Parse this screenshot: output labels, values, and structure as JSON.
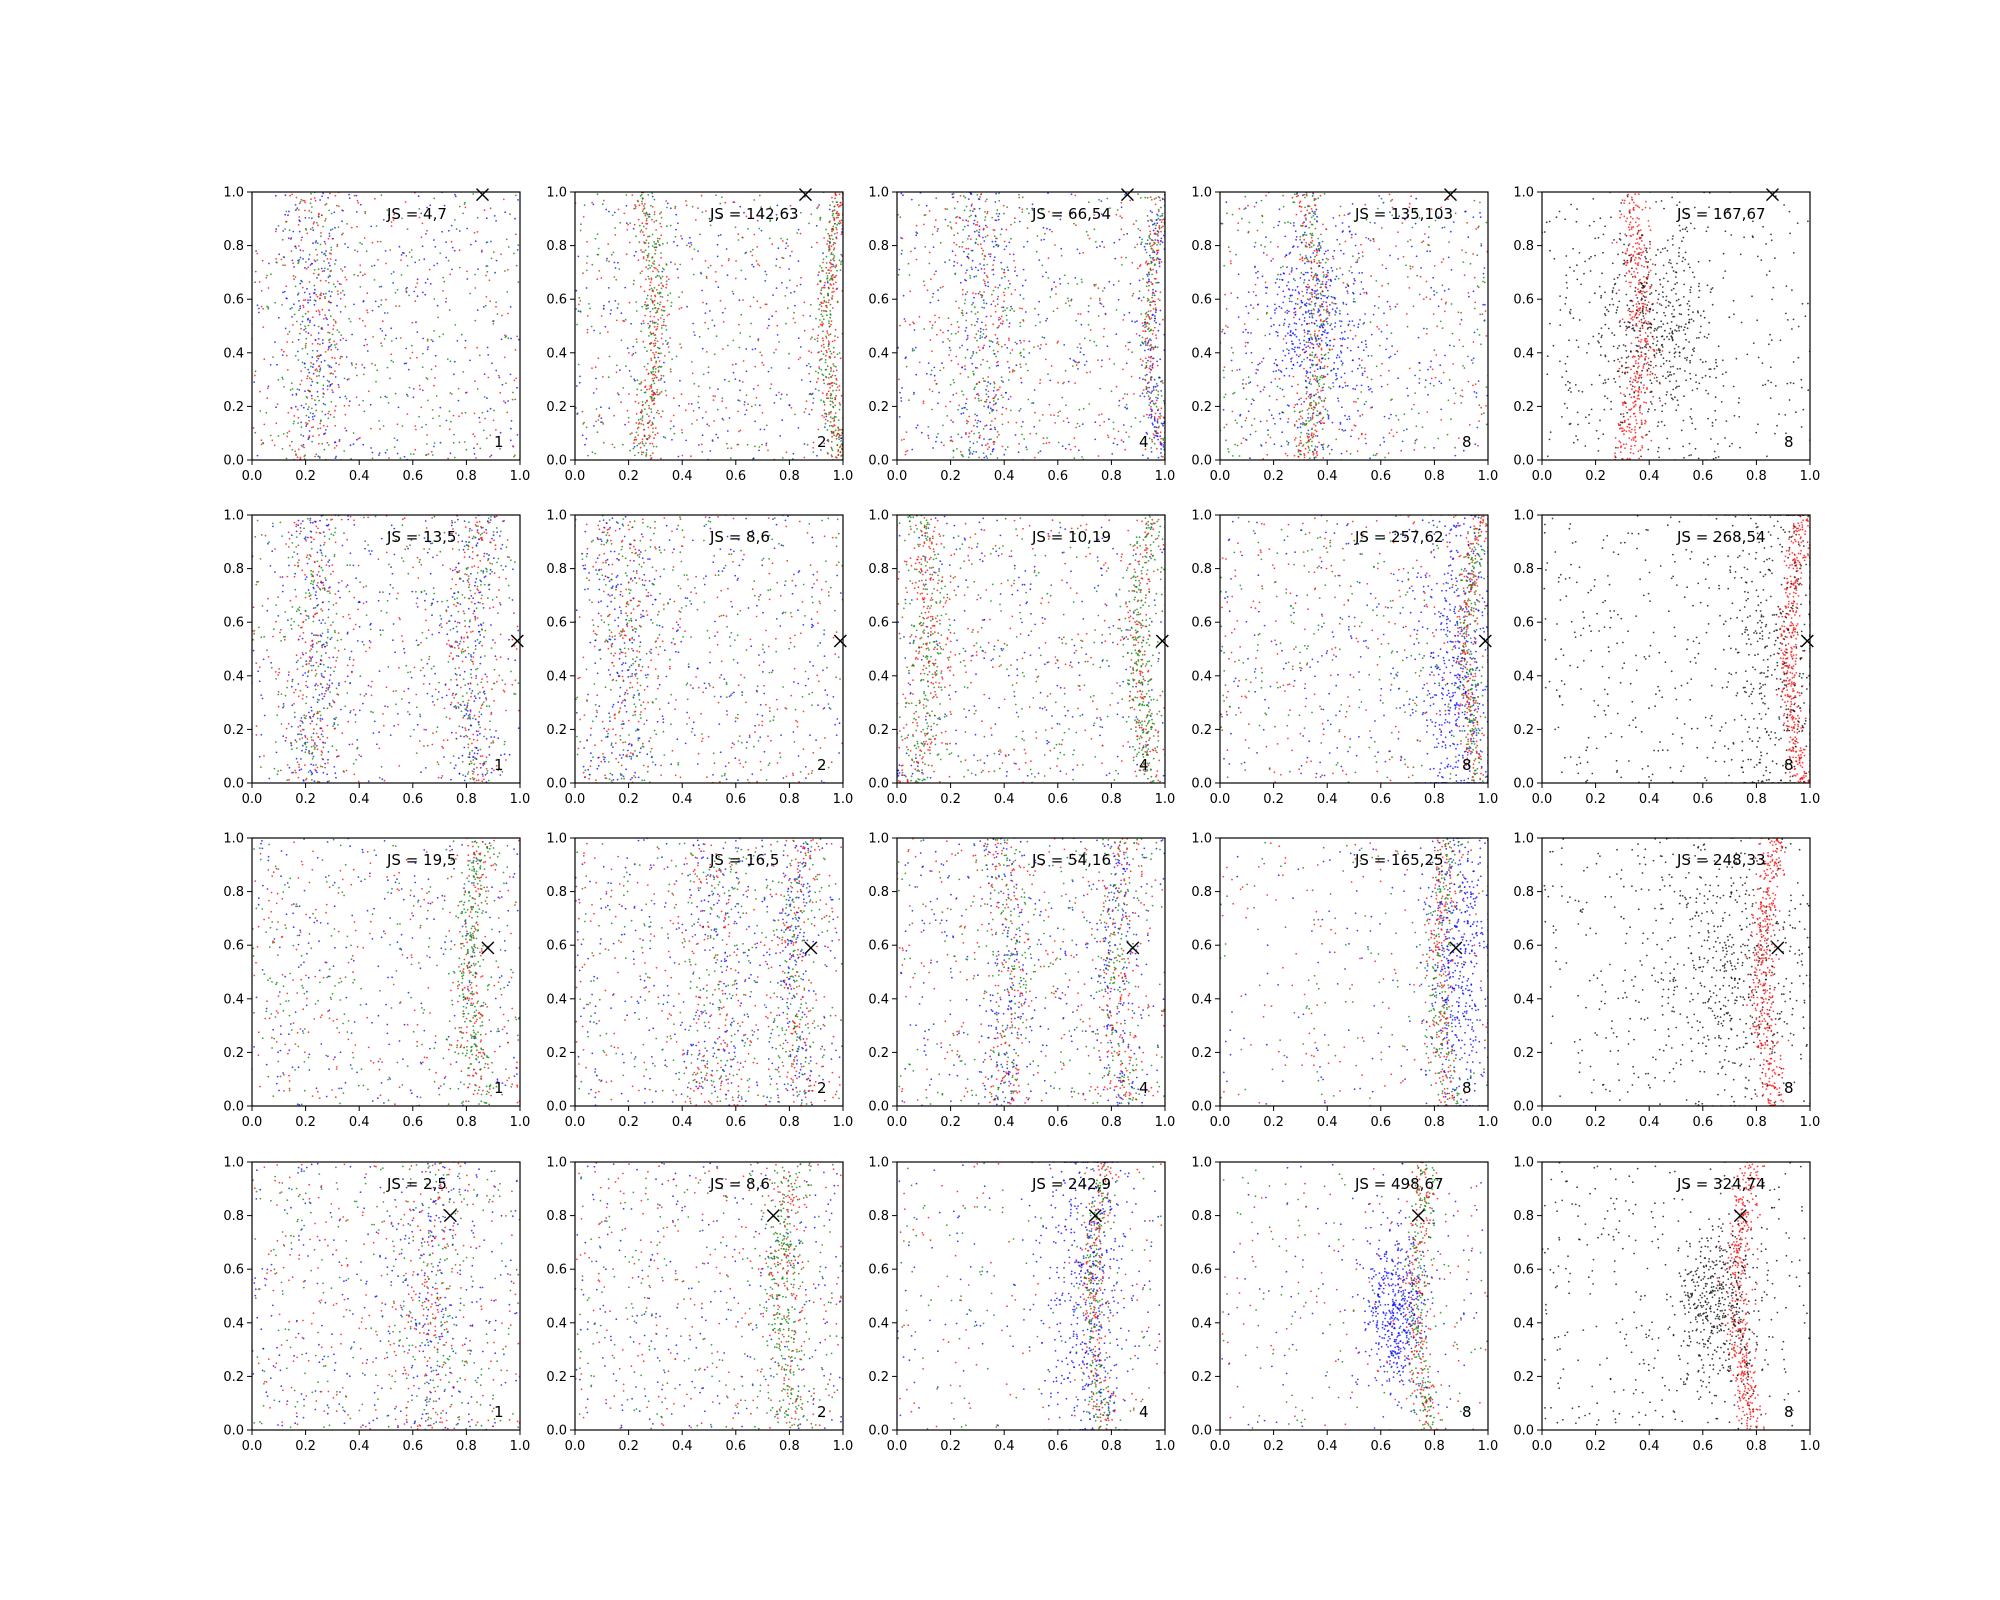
{
  "chart_data": {
    "type": "scatter",
    "layout": {
      "rows": 4,
      "cols": 5
    },
    "xlim": [
      0,
      1
    ],
    "ylim": [
      0,
      1
    ],
    "ticks": [
      "0.0",
      "0.2",
      "0.4",
      "0.6",
      "0.8",
      "1.0"
    ],
    "tick_values": [
      0,
      0.2,
      0.4,
      0.6,
      0.8,
      1.0
    ],
    "colors": {
      "blue": "#0000ff",
      "green": "#008000",
      "red": "#ff0000",
      "black": "#000000"
    },
    "panels": [
      {
        "row": 0,
        "col": 0,
        "js_label": "JS = 4,7",
        "corner_label": "1",
        "marker": [
          0.86,
          0.99
        ],
        "pattern": "mix",
        "bands": [
          [
            0.2,
            0.06
          ]
        ],
        "ring": null
      },
      {
        "row": 0,
        "col": 1,
        "js_label": "JS = 142,63",
        "corner_label": "2",
        "marker": [
          0.86,
          0.99
        ],
        "pattern": "band",
        "bands": [
          [
            0.25,
            0.03
          ],
          [
            0.99,
            0.02
          ]
        ],
        "ring": null
      },
      {
        "row": 0,
        "col": 2,
        "js_label": "JS = 66,54",
        "corner_label": "4",
        "marker": [
          0.86,
          0.99
        ],
        "pattern": "mix",
        "bands": [
          [
            0.3,
            0.06
          ],
          [
            0.99,
            0.02
          ]
        ],
        "ring": null
      },
      {
        "row": 0,
        "col": 3,
        "js_label": "JS = 135,103",
        "corner_label": "8",
        "marker": [
          0.86,
          0.99
        ],
        "pattern": "cluster",
        "bands": [
          [
            0.32,
            0.03
          ]
        ],
        "ring": [
          0.35,
          0.5,
          0.1,
          0.2
        ]
      },
      {
        "row": 0,
        "col": 4,
        "js_label": "JS = 167,67",
        "corner_label": "8",
        "marker": [
          0.86,
          0.99
        ],
        "pattern": "black",
        "bands": [
          [
            0.32,
            0.03
          ]
        ],
        "ring": [
          0.42,
          0.5,
          0.12,
          0.18
        ]
      },
      {
        "row": 1,
        "col": 0,
        "js_label": "JS = 13,5",
        "corner_label": "1",
        "marker": [
          0.99,
          0.53
        ],
        "pattern": "mix",
        "bands": [
          [
            0.2,
            0.05
          ],
          [
            0.85,
            0.05
          ]
        ],
        "ring": null
      },
      {
        "row": 1,
        "col": 1,
        "js_label": "JS = 8,6",
        "corner_label": "2",
        "marker": [
          0.99,
          0.53
        ],
        "pattern": "mix",
        "bands": [
          [
            0.15,
            0.07
          ]
        ],
        "ring": null
      },
      {
        "row": 1,
        "col": 2,
        "js_label": "JS = 10,19",
        "corner_label": "4",
        "marker": [
          0.99,
          0.53
        ],
        "pattern": "edge",
        "bands": [
          [
            0.95,
            0.03
          ],
          [
            0.08,
            0.04
          ]
        ],
        "ring": null
      },
      {
        "row": 1,
        "col": 3,
        "js_label": "JS = 257,62",
        "corner_label": "8",
        "marker": [
          0.99,
          0.53
        ],
        "pattern": "edge-cluster",
        "bands": [
          [
            0.97,
            0.02
          ]
        ],
        "ring": [
          0.88,
          0.35,
          0.08,
          0.3
        ]
      },
      {
        "row": 1,
        "col": 4,
        "js_label": "JS = 268,54",
        "corner_label": "8",
        "marker": [
          0.99,
          0.53
        ],
        "pattern": "black-edge",
        "bands": [
          [
            0.97,
            0.02
          ]
        ],
        "ring": [
          0.88,
          0.5,
          0.12,
          0.4
        ]
      },
      {
        "row": 2,
        "col": 0,
        "js_label": "JS = 19,5",
        "corner_label": "1",
        "marker": [
          0.88,
          0.59
        ],
        "pattern": "arc",
        "bands": [
          [
            0.86,
            0.03
          ]
        ],
        "ring": null
      },
      {
        "row": 2,
        "col": 1,
        "js_label": "JS = 16,5",
        "corner_label": "2",
        "marker": [
          0.88,
          0.59
        ],
        "pattern": "mix",
        "bands": [
          [
            0.5,
            0.08
          ],
          [
            0.86,
            0.04
          ]
        ],
        "ring": null
      },
      {
        "row": 2,
        "col": 2,
        "js_label": "JS = 54,16",
        "corner_label": "4",
        "marker": [
          0.88,
          0.59
        ],
        "pattern": "mix",
        "bands": [
          [
            0.38,
            0.05
          ],
          [
            0.86,
            0.04
          ]
        ],
        "ring": null
      },
      {
        "row": 2,
        "col": 3,
        "js_label": "JS = 165,25",
        "corner_label": "8",
        "marker": [
          0.88,
          0.59
        ],
        "pattern": "arc-cluster",
        "bands": [
          [
            0.86,
            0.03
          ]
        ],
        "ring": [
          0.9,
          0.5,
          0.06,
          0.3
        ]
      },
      {
        "row": 2,
        "col": 4,
        "js_label": "JS = 248,33",
        "corner_label": "8",
        "marker": [
          0.88,
          0.59
        ],
        "pattern": "black",
        "bands": [
          [
            0.87,
            0.025
          ]
        ],
        "ring": [
          0.72,
          0.5,
          0.15,
          0.25
        ]
      },
      {
        "row": 3,
        "col": 0,
        "js_label": "JS = 2,5",
        "corner_label": "1",
        "marker": [
          0.74,
          0.8
        ],
        "pattern": "mix",
        "bands": [
          [
            0.7,
            0.08
          ]
        ],
        "ring": null
      },
      {
        "row": 3,
        "col": 1,
        "js_label": "JS = 8,6",
        "corner_label": "2",
        "marker": [
          0.74,
          0.8
        ],
        "pattern": "arc",
        "bands": [
          [
            0.82,
            0.04
          ]
        ],
        "ring": null
      },
      {
        "row": 3,
        "col": 2,
        "js_label": "JS = 242,9",
        "corner_label": "4",
        "marker": [
          0.74,
          0.8
        ],
        "pattern": "arc-cluster",
        "bands": [
          [
            0.78,
            0.025
          ]
        ],
        "ring": [
          0.7,
          0.5,
          0.08,
          0.35
        ]
      },
      {
        "row": 3,
        "col": 3,
        "js_label": "JS = 498,67",
        "corner_label": "8",
        "marker": [
          0.74,
          0.8
        ],
        "pattern": "arc-cluster",
        "bands": [
          [
            0.78,
            0.025
          ]
        ],
        "ring": [
          0.65,
          0.45,
          0.06,
          0.15
        ]
      },
      {
        "row": 3,
        "col": 4,
        "js_label": "JS = 324,74",
        "corner_label": "8",
        "marker": [
          0.74,
          0.8
        ],
        "pattern": "black",
        "bands": [
          [
            0.78,
            0.025
          ]
        ],
        "ring": [
          0.66,
          0.45,
          0.08,
          0.15
        ]
      }
    ]
  }
}
